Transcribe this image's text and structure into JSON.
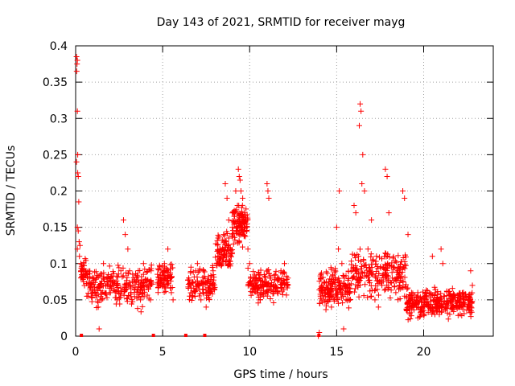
{
  "chart_data": {
    "type": "scatter",
    "title": "Day 143 of 2021, SRMTID for receiver mayg",
    "xlabel": "GPS time / hours",
    "ylabel": "SRMTID / TECUs",
    "xlim": [
      0,
      24
    ],
    "ylim": [
      0,
      0.4
    ],
    "xticks": [
      0,
      5,
      10,
      15,
      20
    ],
    "xtick_labels": [
      "0",
      "5",
      "10",
      "15",
      "20"
    ],
    "yticks": [
      0,
      0.05,
      0.1,
      0.15,
      0.2,
      0.25,
      0.3,
      0.35,
      0.4
    ],
    "ytick_labels": [
      "0",
      "0.05",
      "0.1",
      "0.15",
      "0.2",
      "0.25",
      "0.3",
      "0.35",
      "0.4"
    ],
    "grid": true,
    "marker": "plus",
    "series_color": "#ff0000",
    "series": [
      {
        "name": "SRMTID",
        "points": [
          [
            0.05,
            0.385
          ],
          [
            0.08,
            0.375
          ],
          [
            0.1,
            0.38
          ],
          [
            0.06,
            0.365
          ],
          [
            0.1,
            0.31
          ],
          [
            0.05,
            0.24
          ],
          [
            0.12,
            0.25
          ],
          [
            0.15,
            0.22
          ],
          [
            0.12,
            0.225
          ],
          [
            0.18,
            0.185
          ],
          [
            0.1,
            0.15
          ],
          [
            0.15,
            0.145
          ],
          [
            0.2,
            0.13
          ],
          [
            0.25,
            0.125
          ],
          [
            0.1,
            0.12
          ],
          [
            0.3,
            0.1
          ],
          [
            0.22,
            0.11
          ],
          [
            0.35,
            0.09
          ],
          [
            0.4,
            0.08
          ],
          [
            0.45,
            0.075
          ],
          [
            0.6,
            0.09
          ],
          [
            0.8,
            0.07
          ],
          [
            1.0,
            0.06
          ],
          [
            1.2,
            0.08
          ],
          [
            1.4,
            0.07
          ],
          [
            1.5,
            0.05
          ],
          [
            1.3,
            0.04
          ],
          [
            1.35,
            0.01
          ],
          [
            1.6,
            0.1
          ],
          [
            1.8,
            0.08
          ],
          [
            2.0,
            0.06
          ],
          [
            2.2,
            0.07
          ],
          [
            2.4,
            0.05
          ],
          [
            2.6,
            0.09
          ],
          [
            2.75,
            0.16
          ],
          [
            2.85,
            0.14
          ],
          [
            3.0,
            0.12
          ],
          [
            3.1,
            0.09
          ],
          [
            3.3,
            0.07
          ],
          [
            3.5,
            0.08
          ],
          [
            3.7,
            0.06
          ],
          [
            3.9,
            0.1
          ],
          [
            4.1,
            0.07
          ],
          [
            4.3,
            0.05
          ],
          [
            4.8,
            0.08
          ],
          [
            5.0,
            0.07
          ],
          [
            5.2,
            0.09
          ],
          [
            5.3,
            0.12
          ],
          [
            5.5,
            0.06
          ],
          [
            5.6,
            0.05
          ],
          [
            5.1,
            0.1
          ],
          [
            6.5,
            0.08
          ],
          [
            6.7,
            0.06
          ],
          [
            6.9,
            0.09
          ],
          [
            7.0,
            0.1
          ],
          [
            7.2,
            0.05
          ],
          [
            7.5,
            0.04
          ],
          [
            7.7,
            0.07
          ],
          [
            7.9,
            0.09
          ],
          [
            8.1,
            0.1
          ],
          [
            8.3,
            0.12
          ],
          [
            8.5,
            0.14
          ],
          [
            8.6,
            0.21
          ],
          [
            8.7,
            0.19
          ],
          [
            8.8,
            0.16
          ],
          [
            8.9,
            0.12
          ],
          [
            9.0,
            0.15
          ],
          [
            9.1,
            0.17
          ],
          [
            9.2,
            0.2
          ],
          [
            9.3,
            0.18
          ],
          [
            9.35,
            0.23
          ],
          [
            9.4,
            0.22
          ],
          [
            9.45,
            0.215
          ],
          [
            9.5,
            0.2
          ],
          [
            9.6,
            0.19
          ],
          [
            9.7,
            0.17
          ],
          [
            9.8,
            0.16
          ],
          [
            9.9,
            0.12
          ],
          [
            10.0,
            0.1
          ],
          [
            10.2,
            0.08
          ],
          [
            10.4,
            0.07
          ],
          [
            10.6,
            0.05
          ],
          [
            10.8,
            0.06
          ],
          [
            11.0,
            0.21
          ],
          [
            11.05,
            0.2
          ],
          [
            11.1,
            0.19
          ],
          [
            11.2,
            0.08
          ],
          [
            11.4,
            0.07
          ],
          [
            11.6,
            0.06
          ],
          [
            11.8,
            0.09
          ],
          [
            12.0,
            0.1
          ],
          [
            12.2,
            0.08
          ],
          [
            14.0,
            0.005
          ],
          [
            13.95,
            0.0
          ],
          [
            14.1,
            0.08
          ],
          [
            14.3,
            0.06
          ],
          [
            14.5,
            0.07
          ],
          [
            14.7,
            0.04
          ],
          [
            14.9,
            0.09
          ],
          [
            15.0,
            0.15
          ],
          [
            15.1,
            0.12
          ],
          [
            15.15,
            0.2
          ],
          [
            15.3,
            0.1
          ],
          [
            15.4,
            0.01
          ],
          [
            15.5,
            0.07
          ],
          [
            15.7,
            0.06
          ],
          [
            15.9,
            0.08
          ],
          [
            16.0,
            0.18
          ],
          [
            16.1,
            0.17
          ],
          [
            16.3,
            0.29
          ],
          [
            16.35,
            0.32
          ],
          [
            16.4,
            0.31
          ],
          [
            16.45,
            0.21
          ],
          [
            16.5,
            0.25
          ],
          [
            16.6,
            0.2
          ],
          [
            16.8,
            0.12
          ],
          [
            17.0,
            0.16
          ],
          [
            17.2,
            0.05
          ],
          [
            17.4,
            0.04
          ],
          [
            17.6,
            0.07
          ],
          [
            17.8,
            0.23
          ],
          [
            17.9,
            0.22
          ],
          [
            18.0,
            0.17
          ],
          [
            18.2,
            0.08
          ],
          [
            18.4,
            0.06
          ],
          [
            18.6,
            0.07
          ],
          [
            18.8,
            0.2
          ],
          [
            18.9,
            0.19
          ],
          [
            19.1,
            0.14
          ],
          [
            19.3,
            0.06
          ],
          [
            19.5,
            0.05
          ],
          [
            19.7,
            0.04
          ],
          [
            19.9,
            0.05
          ],
          [
            20.1,
            0.06
          ],
          [
            20.3,
            0.04
          ],
          [
            20.5,
            0.11
          ],
          [
            20.7,
            0.05
          ],
          [
            20.9,
            0.03
          ],
          [
            21.0,
            0.12
          ],
          [
            21.1,
            0.1
          ],
          [
            21.3,
            0.04
          ],
          [
            21.5,
            0.03
          ],
          [
            21.7,
            0.05
          ],
          [
            21.9,
            0.04
          ],
          [
            22.1,
            0.03
          ],
          [
            22.3,
            0.05
          ],
          [
            22.5,
            0.04
          ],
          [
            22.7,
            0.09
          ],
          [
            22.8,
            0.07
          ]
        ],
        "clusters": [
          {
            "x": [
              0.3,
              0.6
            ],
            "y": [
              0.06,
              0.12
            ],
            "n": 30
          },
          {
            "x": [
              0.6,
              4.4
            ],
            "y": [
              0.03,
              0.11
            ],
            "n": 260
          },
          {
            "x": [
              4.7,
              5.6
            ],
            "y": [
              0.05,
              0.11
            ],
            "n": 80
          },
          {
            "x": [
              6.4,
              8.0
            ],
            "y": [
              0.04,
              0.1
            ],
            "n": 110
          },
          {
            "x": [
              8.0,
              9.0
            ],
            "y": [
              0.08,
              0.15
            ],
            "n": 90
          },
          {
            "x": [
              9.0,
              9.9
            ],
            "y": [
              0.12,
              0.19
            ],
            "n": 110
          },
          {
            "x": [
              9.9,
              12.2
            ],
            "y": [
              0.04,
              0.1
            ],
            "n": 170
          },
          {
            "x": [
              14.0,
              15.8
            ],
            "y": [
              0.03,
              0.1
            ],
            "n": 170
          },
          {
            "x": [
              15.8,
              19.0
            ],
            "y": [
              0.04,
              0.13
            ],
            "n": 230
          },
          {
            "x": [
              19.0,
              22.8
            ],
            "y": [
              0.02,
              0.07
            ],
            "n": 330
          }
        ],
        "baseline_marks": [
          0.33,
          4.47,
          6.33,
          7.42,
          13.98
        ]
      }
    ]
  }
}
